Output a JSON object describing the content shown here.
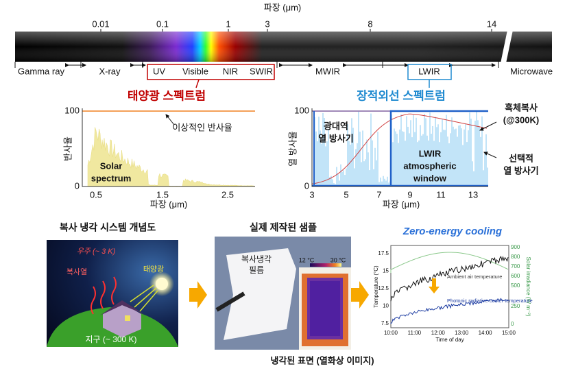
{
  "spectrum": {
    "axis_label": "파장 (μm)",
    "ticks": [
      "0.01",
      "0.1",
      "1",
      "3",
      "8",
      "14"
    ],
    "bands": [
      "Gamma ray",
      "X-ray",
      "UV",
      "Visible",
      "NIR",
      "SWIR",
      "MWIR",
      "LWIR",
      "Microwave"
    ]
  },
  "solar_panel": {
    "title": "태양광 스펙트럼",
    "y_label": "반사율",
    "yticks": [
      "100",
      "0"
    ],
    "xticks": [
      "0.5",
      "1.5",
      "2.5"
    ],
    "x_label": "파장 (μm)",
    "annotation": "이상적인 반사율",
    "spectrum_label": [
      "Solar",
      "spectrum"
    ]
  },
  "ir_panel": {
    "title": "장적외선 스펙트럼",
    "y_label": "열 방사율",
    "yticks": [
      "100",
      "0"
    ],
    "xticks": [
      "3",
      "5",
      "7",
      "9",
      "11",
      "13"
    ],
    "x_label": "파장 (μm)",
    "broadband": [
      "광대역",
      "열 방사기"
    ],
    "window": [
      "LWIR",
      "atmospheric",
      "window"
    ],
    "blackbody": [
      "흑체복사",
      "(@300K)"
    ],
    "selective": [
      "선택적",
      "열 방사기"
    ]
  },
  "concept": {
    "title": "복사 냉각 시스템 개념도",
    "space": "우주 (~ 3 K)",
    "heat": "복사열",
    "sun": "태양광",
    "earth": "지구 (~ 300 K)"
  },
  "sample": {
    "title": "실제 제작된 샘플",
    "film": [
      "복사냉각",
      "필름"
    ],
    "scale_min": "12 °C",
    "scale_max": "30 °C",
    "caption": "냉각된 표면 (열화상 이미지)"
  },
  "result": {
    "title": "Zero-energy cooling",
    "y_label": "Temperature (°C)",
    "y2_label": "Solar irradiance (W m⁻²)",
    "x_label": "Time of day",
    "yticks": [
      "17.5",
      "15",
      "12.5",
      "10",
      "7.5"
    ],
    "y2ticks": [
      "900",
      "800",
      "700",
      "600",
      "500",
      "250",
      "0"
    ],
    "xticks": [
      "10:00",
      "11:00",
      "12:00",
      "13:00",
      "14:00",
      "15:00"
    ],
    "legend": [
      "Ambient air temperature",
      "Photonic radiative cooler temperature"
    ]
  }
}
